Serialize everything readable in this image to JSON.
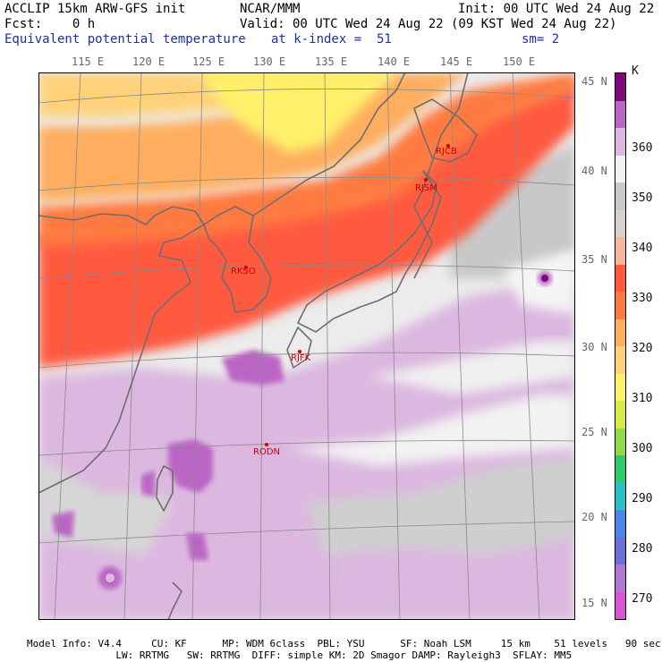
{
  "header": {
    "model": "ACCLIP 15km ARW-GFS init",
    "org": "NCAR/MMM",
    "init": "Init: 00 UTC Wed 24 Aug 22",
    "fcst": "Fcst:    0 h",
    "valid": "Valid: 00 UTC Wed 24 Aug 22 (09 KST Wed 24 Aug 22)",
    "field": "Equivalent potential temperature",
    "level": "at k-index =  51",
    "smooth": "sm= 2"
  },
  "lon_labels": [
    "115 E",
    "120 E",
    "125 E",
    "130 E",
    "135 E",
    "140 E",
    "145 E",
    "150 E"
  ],
  "lat_labels": [
    "45 N",
    "40 N",
    "35 N",
    "30 N",
    "25 N",
    "20 N",
    "15 N"
  ],
  "colorbar": {
    "unit": "K",
    "labels": [
      "360",
      "350",
      "340",
      "330",
      "320",
      "310",
      "300",
      "290",
      "280",
      "270"
    ],
    "colors": [
      "#d756d2",
      "#b077d0",
      "#6e6fd8",
      "#4a86e8",
      "#29c1c6",
      "#2ecb6d",
      "#8fd94a",
      "#d8ea4a",
      "#fff06a",
      "#ffd27a",
      "#ffae5e",
      "#ff7a40",
      "#ff5a40",
      "#f5b7a0",
      "#d8d2cc",
      "#c9c9c9",
      "#f2f2f2",
      "#dcb8e0",
      "#bb66c4",
      "#7a0a7a"
    ]
  },
  "stations": [
    {
      "name": "RJCB"
    },
    {
      "name": "RJSM"
    },
    {
      "name": "RKSO"
    },
    {
      "name": "RJFK"
    },
    {
      "name": "RODN"
    }
  ],
  "footer": {
    "line1": "Model Info: V4.4     CU: KF      MP: WDM 6class  PBL: YSU      SF: Noah LSM     15 km    51 levels   90 sec",
    "line2": "               LW: RRTMG   SW: RRTMG  DIFF: simple KM: 2D Smagor DAMP: Rayleigh3  SFLAY: MM5"
  }
}
